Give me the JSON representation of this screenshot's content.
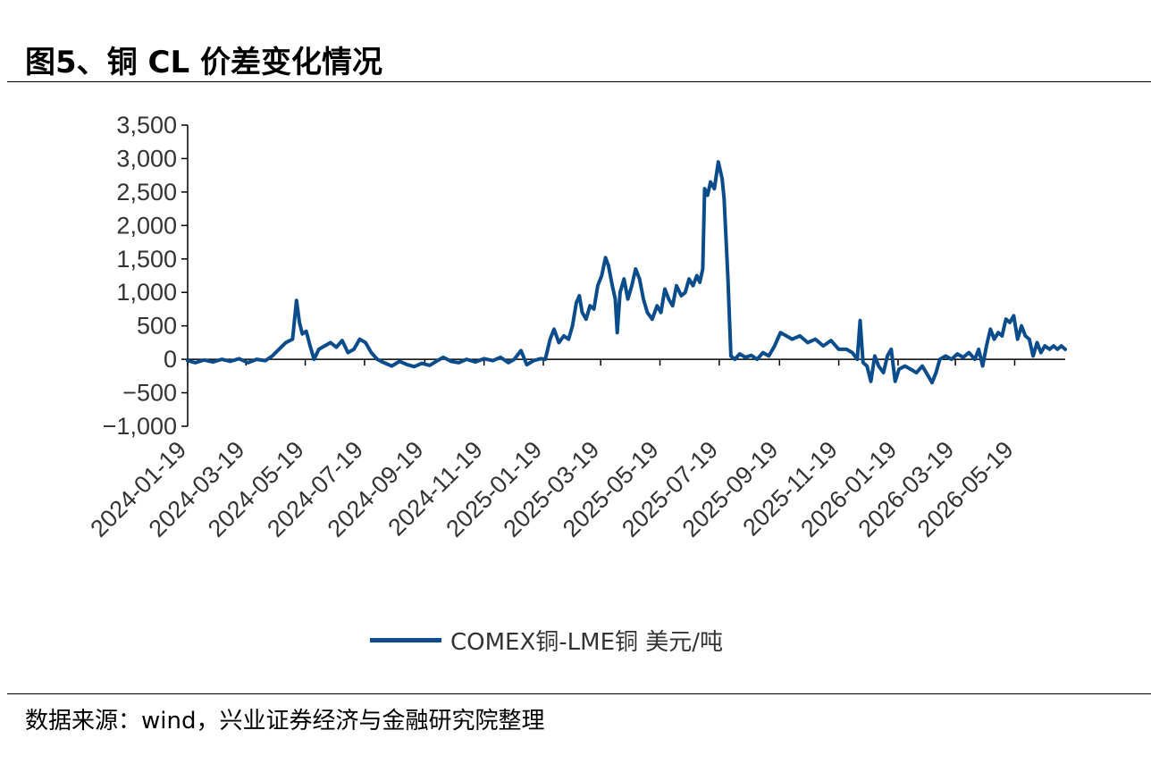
{
  "figure": {
    "title": "图5、铜 CL 价差变化情况",
    "source": "数据来源：wind，兴业证券经济与金融研究院整理"
  },
  "colors": {
    "series": "#0b4d8c",
    "axis": "#000000",
    "text": "#333333"
  },
  "chart_data": {
    "type": "line",
    "title": "",
    "xlabel": "",
    "ylabel": "",
    "ylim": [
      -1000,
      3500
    ],
    "yticks": [
      -1000,
      -500,
      0,
      500,
      1000,
      1500,
      2000,
      2500,
      3000,
      3500
    ],
    "ytick_labels": [
      "−1,000",
      "−500",
      "0",
      "500",
      "1,000",
      "1,500",
      "2,000",
      "2,500",
      "3,000",
      "3,500"
    ],
    "xlim": [
      "2024-01-19",
      "2026-07-10"
    ],
    "xtick_labels": [
      "2024-01-19",
      "2024-03-19",
      "2024-05-19",
      "2024-07-19",
      "2024-09-19",
      "2024-11-19",
      "2025-01-19",
      "2025-03-19",
      "2025-05-19",
      "2025-07-19",
      "2025-09-19",
      "2025-11-19",
      "2026-01-19",
      "2026-03-19",
      "2026-05-19"
    ],
    "grid": false,
    "legend": "bottom",
    "series": [
      {
        "name": "COMEX铜-LME铜 美元/吨",
        "points": [
          [
            "2024-01-19",
            -20
          ],
          [
            "2024-01-27",
            -50
          ],
          [
            "2024-02-05",
            -10
          ],
          [
            "2024-02-14",
            -40
          ],
          [
            "2024-02-23",
            0
          ],
          [
            "2024-03-03",
            -30
          ],
          [
            "2024-03-12",
            10
          ],
          [
            "2024-03-21",
            -50
          ],
          [
            "2024-03-30",
            0
          ],
          [
            "2024-04-08",
            -20
          ],
          [
            "2024-04-15",
            50
          ],
          [
            "2024-04-22",
            150
          ],
          [
            "2024-04-29",
            250
          ],
          [
            "2024-05-06",
            300
          ],
          [
            "2024-05-10",
            880
          ],
          [
            "2024-05-13",
            550
          ],
          [
            "2024-05-16",
            380
          ],
          [
            "2024-05-20",
            420
          ],
          [
            "2024-05-24",
            200
          ],
          [
            "2024-05-28",
            0
          ],
          [
            "2024-06-02",
            150
          ],
          [
            "2024-06-08",
            200
          ],
          [
            "2024-06-14",
            250
          ],
          [
            "2024-06-20",
            180
          ],
          [
            "2024-06-26",
            280
          ],
          [
            "2024-07-02",
            100
          ],
          [
            "2024-07-08",
            150
          ],
          [
            "2024-07-14",
            300
          ],
          [
            "2024-07-20",
            250
          ],
          [
            "2024-07-26",
            100
          ],
          [
            "2024-08-01",
            0
          ],
          [
            "2024-08-08",
            -50
          ],
          [
            "2024-08-16",
            -100
          ],
          [
            "2024-08-24",
            -30
          ],
          [
            "2024-09-01",
            -80
          ],
          [
            "2024-09-08",
            -110
          ],
          [
            "2024-09-16",
            -60
          ],
          [
            "2024-09-24",
            -90
          ],
          [
            "2024-10-02",
            -20
          ],
          [
            "2024-10-08",
            30
          ],
          [
            "2024-10-16",
            -30
          ],
          [
            "2024-10-24",
            -50
          ],
          [
            "2024-11-01",
            0
          ],
          [
            "2024-11-10",
            -40
          ],
          [
            "2024-11-19",
            10
          ],
          [
            "2024-11-28",
            -20
          ],
          [
            "2024-12-06",
            30
          ],
          [
            "2024-12-14",
            -50
          ],
          [
            "2024-12-20",
            0
          ],
          [
            "2024-12-27",
            130
          ],
          [
            "2025-01-02",
            -80
          ],
          [
            "2025-01-09",
            -20
          ],
          [
            "2025-01-16",
            10
          ],
          [
            "2025-01-21",
            0
          ],
          [
            "2025-01-26",
            300
          ],
          [
            "2025-01-30",
            450
          ],
          [
            "2025-02-04",
            250
          ],
          [
            "2025-02-09",
            350
          ],
          [
            "2025-02-14",
            300
          ],
          [
            "2025-02-18",
            500
          ],
          [
            "2025-02-22",
            850
          ],
          [
            "2025-02-25",
            950
          ],
          [
            "2025-02-28",
            700
          ],
          [
            "2025-03-04",
            600
          ],
          [
            "2025-03-08",
            800
          ],
          [
            "2025-03-12",
            750
          ],
          [
            "2025-03-16",
            1100
          ],
          [
            "2025-03-20",
            1250
          ],
          [
            "2025-03-24",
            1520
          ],
          [
            "2025-03-27",
            1400
          ],
          [
            "2025-03-31",
            1100
          ],
          [
            "2025-04-03",
            900
          ],
          [
            "2025-04-05",
            400
          ],
          [
            "2025-04-08",
            1000
          ],
          [
            "2025-04-12",
            1200
          ],
          [
            "2025-04-16",
            900
          ],
          [
            "2025-04-20",
            1100
          ],
          [
            "2025-04-24",
            1350
          ],
          [
            "2025-04-28",
            1200
          ],
          [
            "2025-05-02",
            900
          ],
          [
            "2025-05-06",
            700
          ],
          [
            "2025-05-11",
            600
          ],
          [
            "2025-05-16",
            800
          ],
          [
            "2025-05-20",
            700
          ],
          [
            "2025-05-24",
            1050
          ],
          [
            "2025-05-28",
            900
          ],
          [
            "2025-06-01",
            800
          ],
          [
            "2025-06-05",
            1100
          ],
          [
            "2025-06-10",
            950
          ],
          [
            "2025-06-14",
            1000
          ],
          [
            "2025-06-18",
            1200
          ],
          [
            "2025-06-22",
            1100
          ],
          [
            "2025-06-26",
            1250
          ],
          [
            "2025-06-29",
            1150
          ],
          [
            "2025-07-02",
            1350
          ],
          [
            "2025-07-04",
            2550
          ],
          [
            "2025-07-07",
            2450
          ],
          [
            "2025-07-10",
            2650
          ],
          [
            "2025-07-14",
            2550
          ],
          [
            "2025-07-18",
            2950
          ],
          [
            "2025-07-22",
            2700
          ],
          [
            "2025-07-24",
            2400
          ],
          [
            "2025-07-28",
            1200
          ],
          [
            "2025-07-31",
            50
          ],
          [
            "2025-08-04",
            0
          ],
          [
            "2025-08-09",
            80
          ],
          [
            "2025-08-15",
            30
          ],
          [
            "2025-08-21",
            60
          ],
          [
            "2025-08-27",
            0
          ],
          [
            "2025-09-02",
            100
          ],
          [
            "2025-09-08",
            50
          ],
          [
            "2025-09-14",
            200
          ],
          [
            "2025-09-20",
            400
          ],
          [
            "2025-09-26",
            350
          ],
          [
            "2025-10-02",
            300
          ],
          [
            "2025-10-10",
            350
          ],
          [
            "2025-10-18",
            250
          ],
          [
            "2025-10-26",
            300
          ],
          [
            "2025-11-03",
            200
          ],
          [
            "2025-11-11",
            280
          ],
          [
            "2025-11-19",
            150
          ],
          [
            "2025-11-27",
            150
          ],
          [
            "2025-12-03",
            100
          ],
          [
            "2025-12-08",
            0
          ],
          [
            "2025-12-11",
            580
          ],
          [
            "2025-12-14",
            -50
          ],
          [
            "2025-12-18",
            -100
          ],
          [
            "2025-12-22",
            -330
          ],
          [
            "2025-12-26",
            50
          ],
          [
            "2025-12-30",
            -100
          ],
          [
            "2026-01-04",
            -200
          ],
          [
            "2026-01-08",
            50
          ],
          [
            "2026-01-12",
            150
          ],
          [
            "2026-01-16",
            -330
          ],
          [
            "2026-01-20",
            -150
          ],
          [
            "2026-01-26",
            -100
          ],
          [
            "2026-02-01",
            -150
          ],
          [
            "2026-02-07",
            -200
          ],
          [
            "2026-02-13",
            -100
          ],
          [
            "2026-02-19",
            -250
          ],
          [
            "2026-02-23",
            -350
          ],
          [
            "2026-02-27",
            -200
          ],
          [
            "2026-03-03",
            0
          ],
          [
            "2026-03-09",
            50
          ],
          [
            "2026-03-15",
            0
          ],
          [
            "2026-03-21",
            80
          ],
          [
            "2026-03-27",
            30
          ],
          [
            "2026-04-02",
            100
          ],
          [
            "2026-04-08",
            0
          ],
          [
            "2026-04-12",
            150
          ],
          [
            "2026-04-16",
            -100
          ],
          [
            "2026-04-20",
            200
          ],
          [
            "2026-04-24",
            450
          ],
          [
            "2026-04-28",
            300
          ],
          [
            "2026-05-02",
            400
          ],
          [
            "2026-05-06",
            350
          ],
          [
            "2026-05-10",
            600
          ],
          [
            "2026-05-14",
            550
          ],
          [
            "2026-05-18",
            650
          ],
          [
            "2026-05-22",
            300
          ],
          [
            "2026-05-26",
            500
          ],
          [
            "2026-05-30",
            350
          ],
          [
            "2026-06-03",
            300
          ],
          [
            "2026-06-07",
            50
          ],
          [
            "2026-06-11",
            250
          ],
          [
            "2026-06-15",
            100
          ],
          [
            "2026-06-19",
            200
          ],
          [
            "2026-06-24",
            150
          ],
          [
            "2026-06-28",
            200
          ],
          [
            "2026-07-02",
            150
          ],
          [
            "2026-07-06",
            200
          ],
          [
            "2026-07-10",
            150
          ]
        ]
      }
    ]
  }
}
